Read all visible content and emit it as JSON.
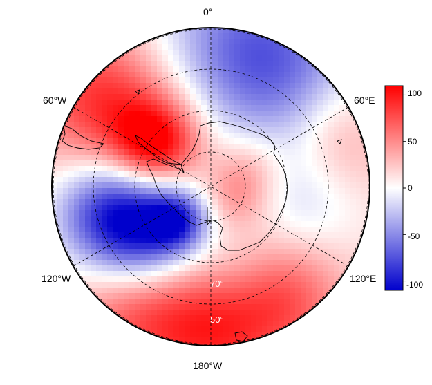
{
  "map": {
    "projection": "south-polar-stereographic",
    "field": "diverging anomaly",
    "longitude_labels": {
      "top": "0°",
      "upper_left": "60°W",
      "upper_right": "60°E",
      "lower_left": "120°W",
      "lower_right": "120°E",
      "bottom": "180°W"
    },
    "latitude_labels": {
      "inner": "70°",
      "outer": "50°"
    }
  },
  "colorbar": {
    "ticks": [
      "100",
      "50",
      "0",
      "-50",
      "-100"
    ],
    "range": [
      -110,
      110
    ],
    "colors": {
      "high": "#ff0000",
      "mid": "#ffffff",
      "low": "#0000cc"
    }
  },
  "colors": {
    "outline": "#000000",
    "grid": "#000000",
    "coast": "#000000"
  }
}
